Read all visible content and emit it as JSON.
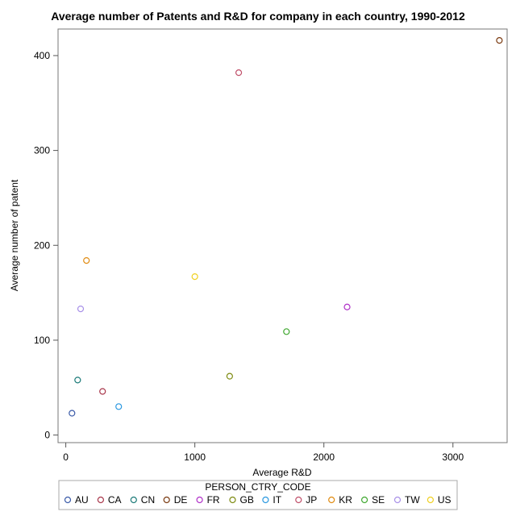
{
  "chart_data": {
    "type": "scatter",
    "title": "Average number of Patents and R&D for company in each country, 1990-2012",
    "xlabel": "Average R&D",
    "ylabel": "Average number of patent",
    "xlim": [
      -60,
      3420
    ],
    "ylim": [
      -8,
      428
    ],
    "xticks": [
      0,
      1000,
      2000,
      3000
    ],
    "yticks": [
      0,
      100,
      200,
      300,
      400
    ],
    "grid": false,
    "legend_title": "PERSON_CTRY_CODE",
    "legend_position": "bottom",
    "series": [
      {
        "name": "AU",
        "color": "#3a5aa8",
        "x": [
          48
        ],
        "y": [
          23
        ]
      },
      {
        "name": "CA",
        "color": "#a8364a",
        "x": [
          285
        ],
        "y": [
          46
        ]
      },
      {
        "name": "CN",
        "color": "#1b7a78",
        "x": [
          92
        ],
        "y": [
          58
        ]
      },
      {
        "name": "DE",
        "color": "#7a3a10",
        "x": [
          3360
        ],
        "y": [
          416
        ]
      },
      {
        "name": "FR",
        "color": "#b030c8",
        "x": [
          2180
        ],
        "y": [
          135
        ]
      },
      {
        "name": "GB",
        "color": "#7d8a10",
        "x": [
          1270
        ],
        "y": [
          62
        ]
      },
      {
        "name": "IT",
        "color": "#2a98e0",
        "x": [
          410
        ],
        "y": [
          30
        ]
      },
      {
        "name": "JP",
        "color": "#c0506a",
        "x": [
          1340
        ],
        "y": [
          382
        ]
      },
      {
        "name": "KR",
        "color": "#e08a10",
        "x": [
          160
        ],
        "y": [
          184
        ]
      },
      {
        "name": "SE",
        "color": "#40a830",
        "x": [
          1710
        ],
        "y": [
          109
        ]
      },
      {
        "name": "TW",
        "color": "#a890e8",
        "x": [
          115
        ],
        "y": [
          133
        ]
      },
      {
        "name": "US",
        "color": "#f0d020",
        "x": [
          1000
        ],
        "y": [
          167
        ]
      }
    ]
  }
}
